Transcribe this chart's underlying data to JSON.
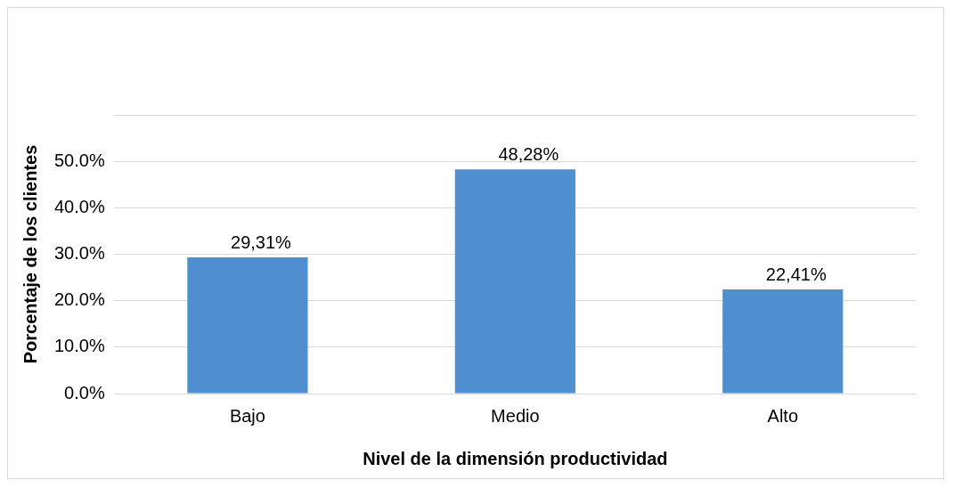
{
  "chart_data": {
    "type": "bar",
    "xlabel": "Nivel de la dimensión productividad",
    "ylabel": "Porcentaje de los clientes",
    "categories": [
      "Bajo",
      "Medio",
      "Alto"
    ],
    "values": [
      29.31,
      48.28,
      22.41
    ],
    "value_labels": [
      "29,31%",
      "48,28%",
      "22,41%"
    ],
    "color": "#4f8fd0",
    "ylim": [
      0,
      60
    ],
    "yticks": [
      {
        "value": 0,
        "label": "0.0%"
      },
      {
        "value": 10,
        "label": "10.0%"
      },
      {
        "value": 20,
        "label": "20.0%"
      },
      {
        "value": 30,
        "label": "30.0%"
      },
      {
        "value": 40,
        "label": "40.0%"
      },
      {
        "value": 50,
        "label": "50.0%"
      },
      {
        "value": 60,
        "label": null
      }
    ],
    "grid": "y",
    "legend": false
  }
}
